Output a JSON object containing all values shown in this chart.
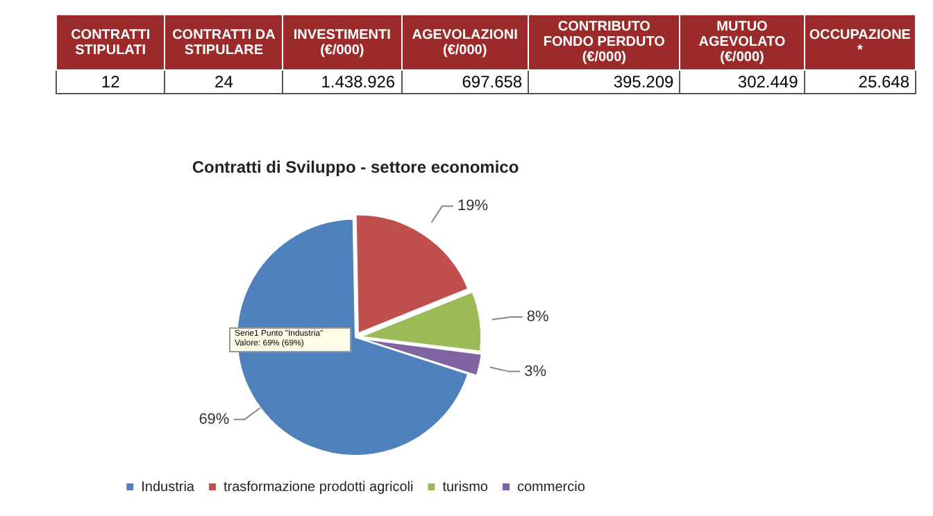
{
  "chart_data": [
    {
      "type": "other",
      "categories": [
        "CONTRATTI STIPULATI",
        "CONTRATTI DA STIPULARE",
        "INVESTIMENTI (€/000)",
        "AGEVOLAZIONI (€/000)",
        "CONTRIBUTO FONDO PERDUTO (€/000)",
        "MUTUO AGEVOLATO (€/000)",
        "OCCUPAZIONE *"
      ],
      "values": [
        12,
        24,
        1438926,
        697658,
        395209,
        302449,
        25648
      ],
      "value_labels": [
        "12",
        "24",
        "1.438.926",
        "697.658",
        "395.209",
        "302.449",
        "25.648"
      ],
      "color": "#9b2b2b"
    },
    {
      "type": "pie",
      "title": "Contratti di Sviluppo - settore economico",
      "categories": [
        "Industria",
        "trasformazione prodotti agricoli",
        "turismo",
        "commercio"
      ],
      "values": [
        69,
        19,
        8,
        3
      ],
      "value_labels": [
        "69%",
        "19%",
        "8%",
        "3%"
      ],
      "colors": [
        "#4f81bd",
        "#c0504d",
        "#9bbb59",
        "#8064a2"
      ],
      "legend": "bottom",
      "annotations": [
        "Serie1 Punto \"Industria\" Valore: 69% (69%)"
      ]
    }
  ]
}
